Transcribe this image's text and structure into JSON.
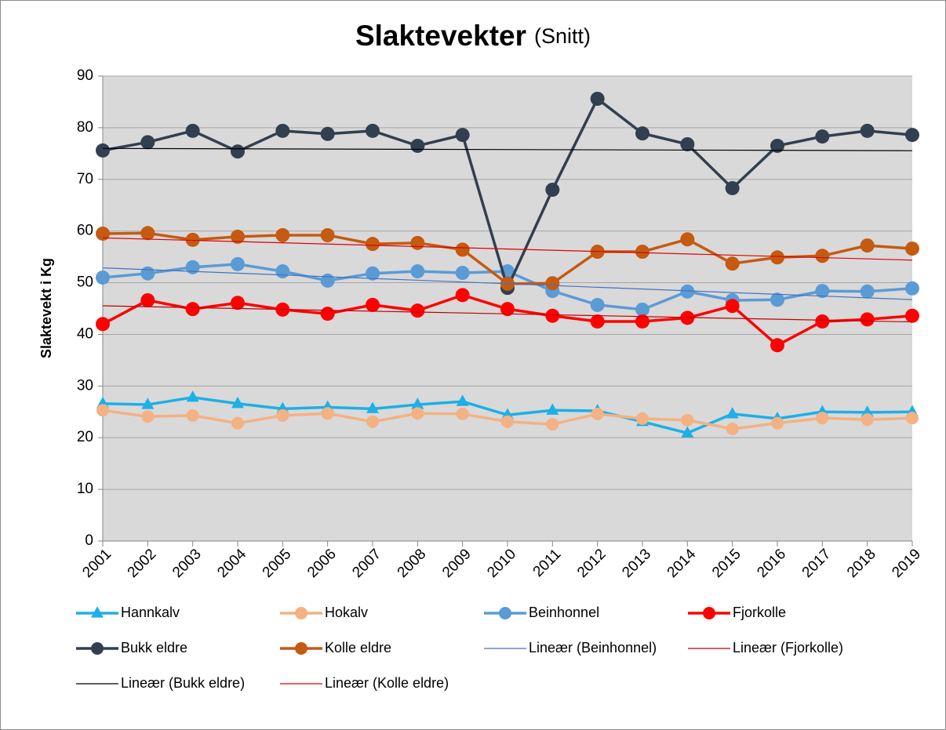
{
  "chart_data": {
    "type": "line",
    "title": "Slaktevekter",
    "subtitle": "(Snitt)",
    "y_label": "Slaktevekt i Kg",
    "categories": [
      "2001",
      "2002",
      "2003",
      "2004",
      "2005",
      "2006",
      "2007",
      "2008",
      "2009",
      "2010",
      "2011",
      "2012",
      "2013",
      "2014",
      "2015",
      "2016",
      "2017",
      "2018",
      "2019"
    ],
    "ylim": [
      0,
      90
    ],
    "yticks": [
      0,
      10,
      20,
      30,
      40,
      50,
      60,
      70,
      80,
      90
    ],
    "grid": true,
    "series": [
      {
        "name": "Hannkalv",
        "color": "#1cb0e6",
        "marker": "triangle",
        "values": [
          26.6,
          26.4,
          27.8,
          26.6,
          25.6,
          25.9,
          25.6,
          26.4,
          27.0,
          24.4,
          25.3,
          25.2,
          23.1,
          20.9,
          24.6,
          23.7,
          25.0,
          24.9,
          25.0
        ]
      },
      {
        "name": "Hokalv",
        "color": "#f4b183",
        "marker": "circle",
        "values": [
          25.3,
          24.1,
          24.3,
          22.8,
          24.3,
          24.7,
          23.1,
          24.7,
          24.6,
          23.1,
          22.6,
          24.6,
          23.7,
          23.4,
          21.7,
          22.8,
          23.8,
          23.5,
          23.8
        ]
      },
      {
        "name": "Beinhonnel",
        "color": "#5b9bd5",
        "marker": "circle",
        "values": [
          51.0,
          51.8,
          53.0,
          53.6,
          52.2,
          50.4,
          51.8,
          52.2,
          51.9,
          52.2,
          48.4,
          45.7,
          44.8,
          48.3,
          46.6,
          46.7,
          48.4,
          48.3,
          48.9
        ],
        "trendline": {
          "name": "Lineær (Beinhonnel)",
          "color": "#4472c4"
        }
      },
      {
        "name": "Fjorkolle",
        "color": "#ff0000",
        "marker": "circle",
        "values": [
          42.0,
          46.6,
          44.9,
          46.1,
          44.8,
          44.0,
          45.7,
          44.6,
          47.6,
          44.9,
          43.6,
          42.5,
          42.5,
          43.2,
          45.5,
          37.9,
          42.5,
          42.9,
          43.6
        ],
        "trendline": {
          "name": "Lineær (Fjorkolle)",
          "color": "#c00000"
        }
      },
      {
        "name": "Bukk eldre",
        "color": "#323f4f",
        "marker": "circle",
        "values": [
          75.6,
          77.2,
          79.4,
          75.4,
          79.4,
          78.8,
          79.4,
          76.5,
          78.6,
          49.0,
          68.0,
          85.6,
          78.9,
          76.8,
          68.3,
          76.5,
          78.3,
          79.4,
          78.6
        ],
        "trendline": {
          "name": "Lineær (Bukk eldre)",
          "color": "#000000"
        }
      },
      {
        "name": "Kolle eldre",
        "color": "#c55a11",
        "marker": "circle",
        "values": [
          59.5,
          59.6,
          58.3,
          58.9,
          59.2,
          59.2,
          57.5,
          57.7,
          56.4,
          49.8,
          49.9,
          56.0,
          56.0,
          58.4,
          53.7,
          54.9,
          55.2,
          57.2,
          56.6
        ],
        "trendline": {
          "name": "Lineær (Kolle eldre)",
          "color": "#e00000"
        }
      }
    ]
  }
}
